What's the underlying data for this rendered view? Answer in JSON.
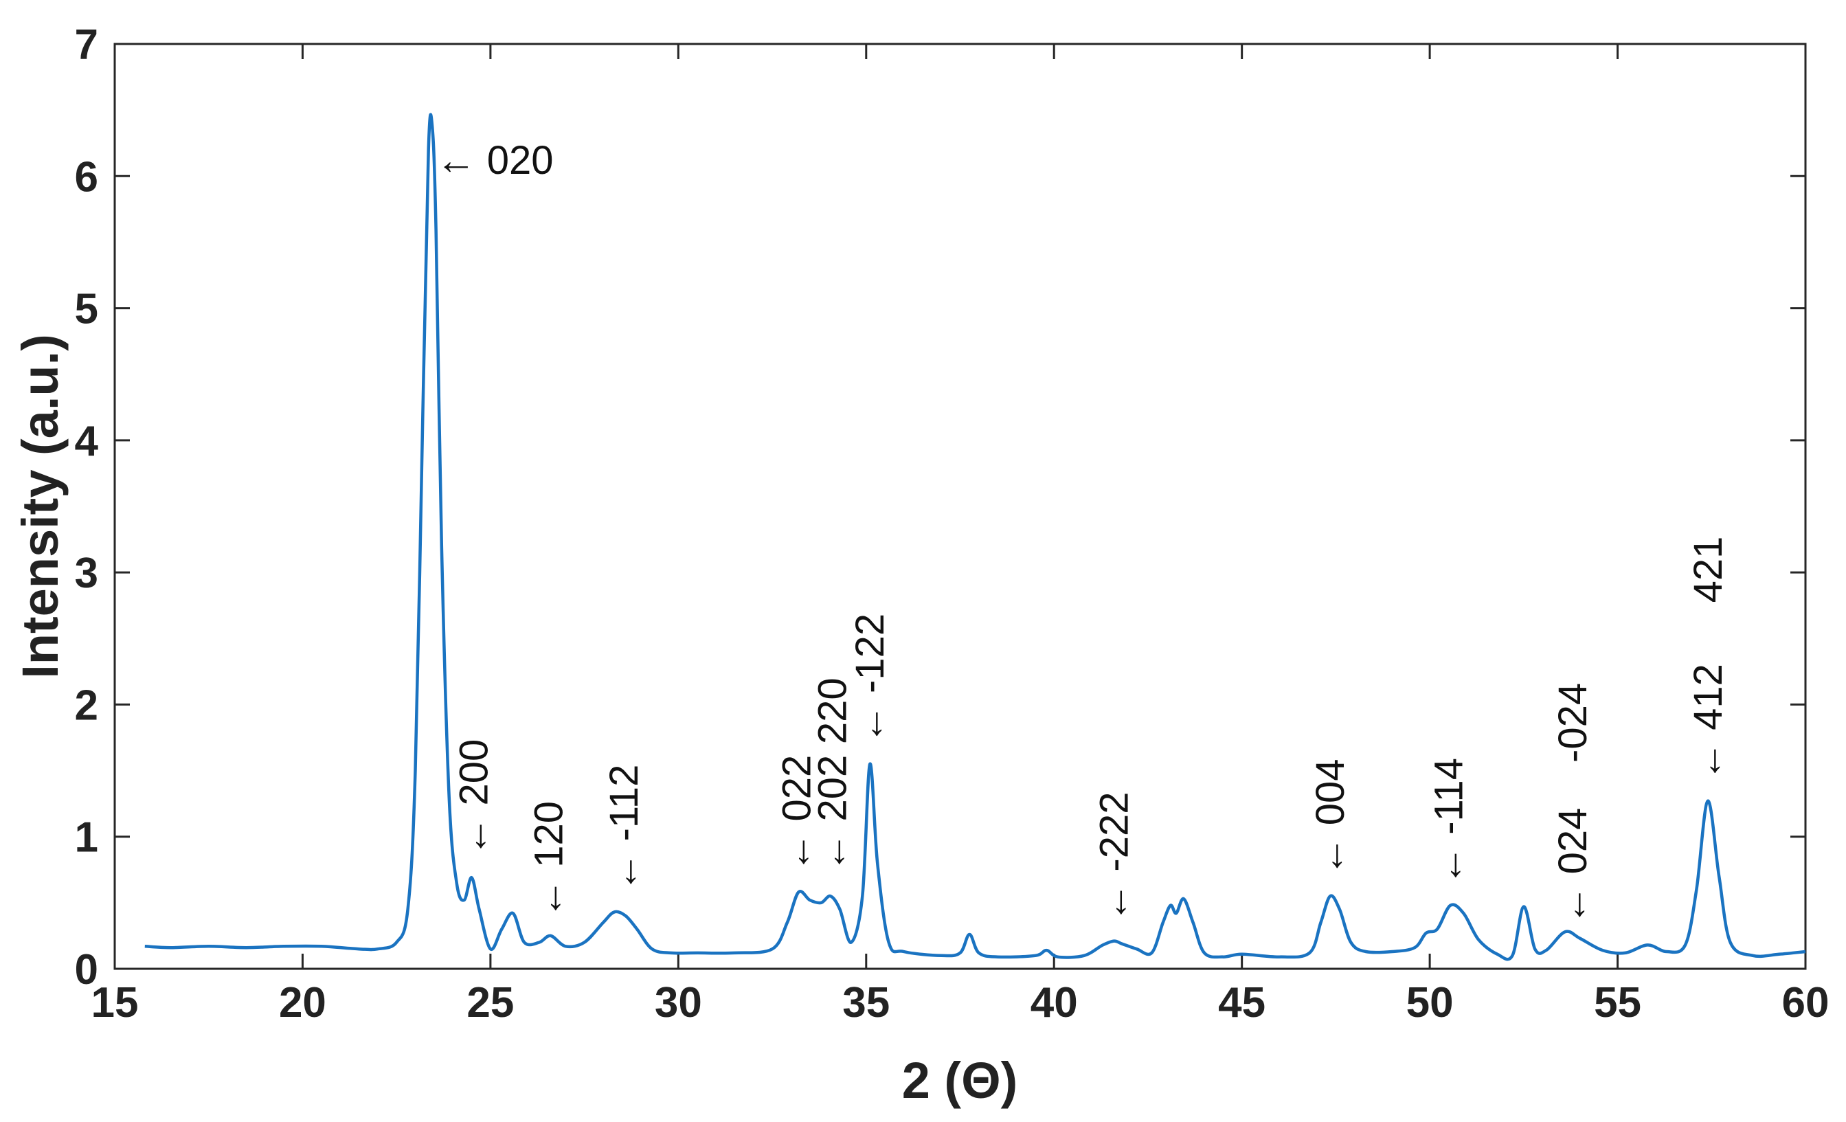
{
  "chart_data": {
    "type": "line",
    "xlabel": "2 (Θ)",
    "ylabel": "Intensity (a.u.)",
    "xlim": [
      15,
      60
    ],
    "ylim": [
      0,
      7
    ],
    "xticks": [
      15,
      20,
      25,
      30,
      35,
      40,
      45,
      50,
      55,
      60
    ],
    "yticks": [
      0,
      1,
      2,
      3,
      4,
      5,
      6,
      7
    ],
    "grid": false,
    "line_color": "#1a73c1",
    "series": [
      {
        "x": [
          15.8,
          16.5,
          17.5,
          18.5,
          19.5,
          20.5,
          21.5,
          22.0,
          22.5,
          22.8,
          23.0,
          23.2,
          23.35,
          23.45,
          23.55,
          23.7,
          23.9,
          24.1,
          24.3,
          24.5,
          24.7,
          25.0,
          25.3,
          25.6,
          25.9,
          26.3,
          26.6,
          27.0,
          27.5,
          28.0,
          28.3,
          28.6,
          28.9,
          29.3,
          29.8,
          30.5,
          31.5,
          32.5,
          32.9,
          33.2,
          33.5,
          33.8,
          34.05,
          34.3,
          34.6,
          34.9,
          35.1,
          35.3,
          35.6,
          36.0,
          37.0,
          37.5,
          37.75,
          38.0,
          38.5,
          39.5,
          39.8,
          40.1,
          40.8,
          41.3,
          41.6,
          41.8,
          42.2,
          42.6,
          42.9,
          43.1,
          43.25,
          43.45,
          43.7,
          44.0,
          44.5,
          45.0,
          46.0,
          46.8,
          47.1,
          47.35,
          47.6,
          47.9,
          48.3,
          49.0,
          49.6,
          49.9,
          50.2,
          50.55,
          50.9,
          51.3,
          51.8,
          52.2,
          52.5,
          52.8,
          53.1,
          53.6,
          54.0,
          54.6,
          55.2,
          55.8,
          56.3,
          56.8,
          57.1,
          57.4,
          57.7,
          58.0,
          58.6,
          59.3,
          60.0
        ],
        "y": [
          0.17,
          0.16,
          0.17,
          0.16,
          0.17,
          0.17,
          0.15,
          0.15,
          0.2,
          0.45,
          1.5,
          4.2,
          6.2,
          6.38,
          5.6,
          3.2,
          1.3,
          0.65,
          0.52,
          0.69,
          0.45,
          0.15,
          0.3,
          0.42,
          0.2,
          0.2,
          0.25,
          0.17,
          0.2,
          0.35,
          0.43,
          0.4,
          0.3,
          0.15,
          0.12,
          0.12,
          0.12,
          0.15,
          0.35,
          0.58,
          0.52,
          0.5,
          0.55,
          0.45,
          0.2,
          0.55,
          1.55,
          0.8,
          0.2,
          0.13,
          0.1,
          0.12,
          0.26,
          0.12,
          0.09,
          0.1,
          0.14,
          0.09,
          0.1,
          0.18,
          0.21,
          0.19,
          0.15,
          0.12,
          0.35,
          0.48,
          0.42,
          0.53,
          0.35,
          0.12,
          0.09,
          0.11,
          0.09,
          0.12,
          0.35,
          0.55,
          0.45,
          0.2,
          0.13,
          0.13,
          0.16,
          0.27,
          0.3,
          0.48,
          0.42,
          0.22,
          0.11,
          0.1,
          0.47,
          0.15,
          0.14,
          0.28,
          0.23,
          0.14,
          0.12,
          0.18,
          0.13,
          0.18,
          0.6,
          1.27,
          0.7,
          0.2,
          0.1,
          0.11,
          0.13
        ]
      }
    ],
    "annotations": [
      {
        "text": "← 020",
        "x": 23.55,
        "y": 6.12,
        "rotate": false
      },
      {
        "text": "← 200",
        "x": 24.55,
        "y": 0.85,
        "rotate": true
      },
      {
        "text": "← 120",
        "x": 26.55,
        "y": 0.38,
        "rotate": true
      },
      {
        "text": "← -112",
        "x": 28.55,
        "y": 0.58,
        "rotate": true
      },
      {
        "text": "← 022",
        "x": 33.15,
        "y": 0.73,
        "rotate": true
      },
      {
        "text": "← 202",
        "x": 34.1,
        "y": 0.73,
        "rotate": true
      },
      {
        "text": "220",
        "x": 34.1,
        "y": 1.7,
        "rotate": true
      },
      {
        "text": "← -122",
        "x": 35.1,
        "y": 1.7,
        "rotate": true
      },
      {
        "text": "← -222",
        "x": 41.6,
        "y": 0.35,
        "rotate": true
      },
      {
        "text": "← 004",
        "x": 47.35,
        "y": 0.7,
        "rotate": true
      },
      {
        "text": "← -114",
        "x": 50.5,
        "y": 0.63,
        "rotate": true
      },
      {
        "text": "← 024",
        "x": 53.8,
        "y": 0.33,
        "rotate": true
      },
      {
        "text": "-024",
        "x": 53.8,
        "y": 1.56,
        "rotate": true
      },
      {
        "text": "← 412",
        "x": 57.4,
        "y": 1.42,
        "rotate": true
      },
      {
        "text": "421",
        "x": 57.4,
        "y": 2.77,
        "rotate": true
      }
    ]
  }
}
